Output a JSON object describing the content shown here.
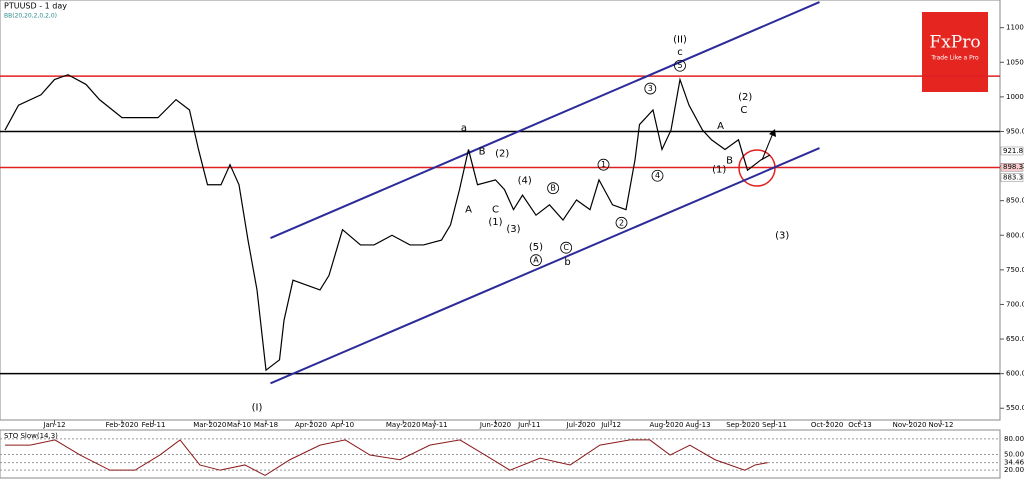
{
  "chart_data": {
    "type": "line",
    "title": "PTUUSD - 1 day",
    "subtitle": "BB(20,20,2,0,2,0)",
    "brand": {
      "name": "FxPro",
      "tagline": "Trade Like a Pro"
    },
    "series": [
      {
        "name": "PTUUSD",
        "color": "#000000",
        "x": [
          0,
          3,
          8,
          11,
          14,
          18,
          21,
          26,
          30,
          34,
          38,
          41,
          43,
          45,
          48,
          50,
          52,
          54,
          56,
          57,
          58,
          61,
          62,
          64,
          67,
          70,
          72,
          75,
          79,
          82,
          86,
          90,
          93,
          97,
          99,
          101,
          103,
          105,
          109,
          111,
          113,
          115,
          118,
          121,
          124,
          127,
          130,
          132,
          135,
          138,
          140,
          141,
          144,
          146,
          148,
          150,
          152,
          155,
          157,
          160,
          163,
          165,
          168,
          170
        ],
        "values": [
          952,
          988,
          1003,
          1025,
          1032,
          1018,
          996,
          970,
          970,
          970,
          996,
          981,
          924,
          873,
          873,
          902,
          873,
          793,
          721,
          663,
          605,
          620,
          677,
          735,
          728,
          721,
          742,
          808,
          786,
          786,
          800,
          786,
          786,
          793,
          815,
          866,
          924,
          873,
          880,
          866,
          837,
          858,
          829,
          844,
          822,
          851,
          837,
          880,
          844,
          837,
          909,
          960,
          981,
          924,
          952,
          1025,
          988,
          952,
          938,
          924,
          938,
          894,
          909,
          916
        ]
      }
    ],
    "levels": [
      {
        "value": 1030,
        "color": "#e02020"
      },
      {
        "value": 950,
        "color": "#000000"
      },
      {
        "value": 898,
        "color": "#e02020"
      },
      {
        "value": 600,
        "color": "#000000"
      }
    ],
    "trendlines": [
      {
        "color": "#2b2b9a",
        "from": [
          59,
          796
        ],
        "to": [
          181,
          1137
        ]
      },
      {
        "color": "#2b2b9a",
        "from": [
          59,
          586
        ],
        "to": [
          181,
          926
        ]
      }
    ],
    "price_labels": [
      {
        "value": 921.8,
        "label": "921.8"
      },
      {
        "value": 898.3,
        "label": "898.3"
      },
      {
        "value": 883.3,
        "label": "883.3"
      }
    ],
    "annotations": [
      {
        "text": "(I)",
        "x": 56,
        "y": 551
      },
      {
        "text": "(II)",
        "x": 150,
        "y": 1083
      },
      {
        "text": "c",
        "x": 150,
        "y": 1065
      },
      {
        "text": "5",
        "x": 150,
        "y": 1045,
        "circled": true
      },
      {
        "text": "a",
        "x": 102,
        "y": 955
      },
      {
        "text": "A",
        "x": 103,
        "y": 837
      },
      {
        "text": "B",
        "x": 106,
        "y": 921
      },
      {
        "text": "C",
        "x": 109,
        "y": 837
      },
      {
        "text": "(1)",
        "x": 109,
        "y": 819
      },
      {
        "text": "(2)",
        "x": 110.5,
        "y": 918
      },
      {
        "text": "(3)",
        "x": 113,
        "y": 809
      },
      {
        "text": "(4)",
        "x": 115.5,
        "y": 879
      },
      {
        "text": "(5)",
        "x": 118,
        "y": 783
      },
      {
        "text": "A",
        "x": 118,
        "y": 764,
        "circled": true
      },
      {
        "text": "B",
        "x": 121.8,
        "y": 868,
        "circled": true
      },
      {
        "text": "C",
        "x": 124.7,
        "y": 782,
        "circled": true
      },
      {
        "text": "b",
        "x": 125,
        "y": 761
      },
      {
        "text": "1",
        "x": 133,
        "y": 902,
        "circled": true
      },
      {
        "text": "2",
        "x": 137,
        "y": 818,
        "circled": true
      },
      {
        "text": "3",
        "x": 143.4,
        "y": 1012,
        "circled": true
      },
      {
        "text": "4",
        "x": 145,
        "y": 886,
        "circled": true
      },
      {
        "text": "A",
        "x": 159,
        "y": 958
      },
      {
        "text": "B",
        "x": 161,
        "y": 908
      },
      {
        "text": "(1)",
        "x": 158.7,
        "y": 895
      },
      {
        "text": "(2)",
        "x": 164.5,
        "y": 1000
      },
      {
        "text": "C",
        "x": 164.2,
        "y": 981
      },
      {
        "text": "(3)",
        "x": 172.7,
        "y": 800
      }
    ],
    "xlim": [
      0,
      221
    ],
    "ylim": [
      533,
      1140
    ],
    "yticks": [
      {
        "value": 550,
        "label": "550.0"
      },
      {
        "value": 600,
        "label": "600.0"
      },
      {
        "value": 650,
        "label": "650.0"
      },
      {
        "value": 700,
        "label": "700.0"
      },
      {
        "value": 750,
        "label": "750.0"
      },
      {
        "value": 800,
        "label": "800.0"
      },
      {
        "value": 850,
        "label": "850.0"
      },
      {
        "value": 900,
        "label": "900.0"
      },
      {
        "value": 950,
        "label": "950.0"
      },
      {
        "value": 1000,
        "label": "1000.0"
      },
      {
        "value": 1050,
        "label": "1050.0"
      },
      {
        "value": 1100,
        "label": "1100.0"
      }
    ],
    "xticks": [
      {
        "value": 11,
        "label": "Jan-12"
      },
      {
        "value": 26,
        "label": "Feb-2020"
      },
      {
        "value": 33,
        "label": "Feb-11"
      },
      {
        "value": 45.5,
        "label": "Mar-2020"
      },
      {
        "value": 52,
        "label": "Mar-10"
      },
      {
        "value": 58,
        "label": "Mar-18"
      },
      {
        "value": 68,
        "label": "Apr-2020"
      },
      {
        "value": 75,
        "label": "Apr-10"
      },
      {
        "value": 88.5,
        "label": "May-2020"
      },
      {
        "value": 95.5,
        "label": "May-11"
      },
      {
        "value": 109,
        "label": "Jun-2020"
      },
      {
        "value": 116.5,
        "label": "Jun-11"
      },
      {
        "value": 128,
        "label": "Jul-2020"
      },
      {
        "value": 134.7,
        "label": "Jul-12"
      },
      {
        "value": 147,
        "label": "Aug-2020"
      },
      {
        "value": 154,
        "label": "Aug-13"
      },
      {
        "value": 164,
        "label": "Sep-2020"
      },
      {
        "value": 171,
        "label": "Sep-11"
      },
      {
        "value": 182.7,
        "label": "Oct-2020"
      },
      {
        "value": 190,
        "label": "Oct-13"
      },
      {
        "value": 201,
        "label": "Nov-2020"
      },
      {
        "value": 208,
        "label": "Nov-12"
      }
    ],
    "oscillator": {
      "title": "STO Slow(14,3)",
      "color": "#8b1a1a",
      "ylim": [
        5,
        97
      ],
      "x": [
        0,
        5.6,
        11.1,
        16.7,
        23.3,
        28.9,
        34.4,
        38.9,
        43.3,
        47.8,
        53.3,
        57.8,
        63.3,
        70,
        75.6,
        81.1,
        87.8,
        94.4,
        101.1,
        106.7,
        112.2,
        118.9,
        125.6,
        132.2,
        138.9,
        143.3,
        147.8,
        152.2,
        157.8,
        164.4,
        166.7,
        169.5
      ],
      "values": [
        68,
        68,
        78,
        49,
        20,
        20,
        49,
        78,
        30,
        20,
        30,
        10,
        40,
        68,
        78,
        49,
        40,
        68,
        78,
        49,
        20,
        43,
        30,
        68,
        78,
        78,
        49,
        68,
        40,
        20,
        30,
        34.46
      ],
      "yticks": [
        {
          "value": 80,
          "label": "80.00"
        },
        {
          "value": 50,
          "label": "50.00"
        },
        {
          "value": 34.46,
          "label": "34.46"
        },
        {
          "value": 20,
          "label": "20.00"
        }
      ]
    }
  }
}
